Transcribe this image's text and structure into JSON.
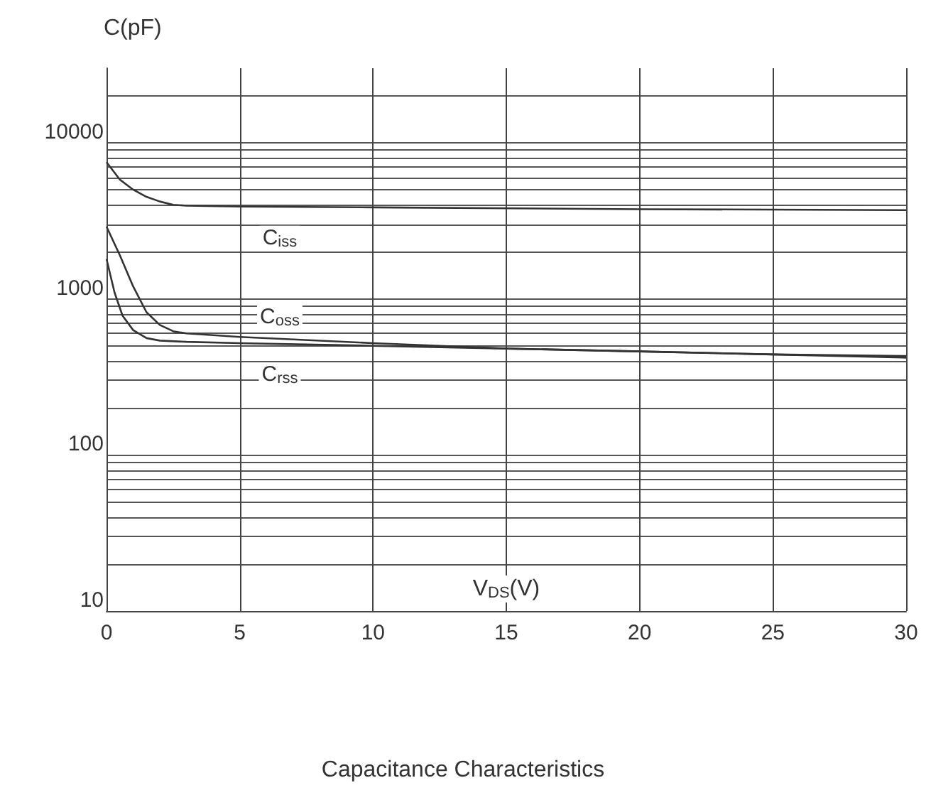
{
  "chart_data": {
    "type": "line",
    "title": "Capacitance Characteristics",
    "xlabel": "V$_{DS}$(V)",
    "ylabel": "C(pF)",
    "log": "y",
    "grid": true,
    "marker": "none",
    "line_style": "solid",
    "xlim": [
      0,
      30
    ],
    "xticks": [
      0,
      5,
      10,
      15,
      20,
      25,
      30
    ],
    "ylim": [
      10,
      30000
    ],
    "yticks": [
      10,
      {
        "value": 20,
        "label": null
      },
      {
        "value": 30,
        "label": null
      },
      {
        "value": 40,
        "label": null
      },
      {
        "value": 50,
        "label": null
      },
      {
        "value": 60,
        "label": null
      },
      {
        "value": 70,
        "label": null
      },
      {
        "value": 80,
        "label": null
      },
      {
        "value": 90,
        "label": null
      },
      100,
      {
        "value": 200,
        "label": null
      },
      {
        "value": 300,
        "label": null
      },
      {
        "value": 400,
        "label": null
      },
      {
        "value": 500,
        "label": null
      },
      {
        "value": 600,
        "label": null
      },
      {
        "value": 700,
        "label": null
      },
      {
        "value": 800,
        "label": null
      },
      {
        "value": 900,
        "label": null
      },
      1000,
      {
        "value": 2000,
        "label": null
      },
      {
        "value": 3000,
        "label": null
      },
      {
        "value": 4000,
        "label": null
      },
      {
        "value": 5000,
        "label": null
      },
      {
        "value": 6000,
        "label": null
      },
      {
        "value": 7000,
        "label": null
      },
      {
        "value": 8000,
        "label": null
      },
      {
        "value": 9000,
        "label": null
      },
      10000,
      {
        "value": 20000,
        "label": null
      }
    ],
    "series": [
      {
        "name": "C$_{iss}$",
        "color": "#333333",
        "x": [
          0,
          0.5,
          1,
          1.5,
          2,
          2.5,
          3,
          5,
          10,
          20,
          30
        ],
        "values": [
          7500,
          5800,
          5000,
          4500,
          4200,
          4000,
          3950,
          3900,
          3850,
          3750,
          3700
        ]
      },
      {
        "name": "C$_{oss}$",
        "color": "#333333",
        "x": [
          0,
          0.5,
          1,
          1.5,
          2,
          2.5,
          3,
          5,
          10,
          15,
          20,
          25,
          30
        ],
        "values": [
          2900,
          1900,
          1200,
          820,
          680,
          620,
          600,
          570,
          520,
          480,
          460,
          440,
          420
        ]
      },
      {
        "name": "C$_{rss}$",
        "color": "#333333",
        "x": [
          0,
          0.3,
          0.6,
          1,
          1.5,
          2,
          3,
          5,
          10,
          15,
          20,
          25,
          30
        ],
        "values": [
          1800,
          1100,
          780,
          630,
          560,
          540,
          530,
          520,
          500,
          480,
          460,
          440,
          430
        ]
      }
    ]
  }
}
